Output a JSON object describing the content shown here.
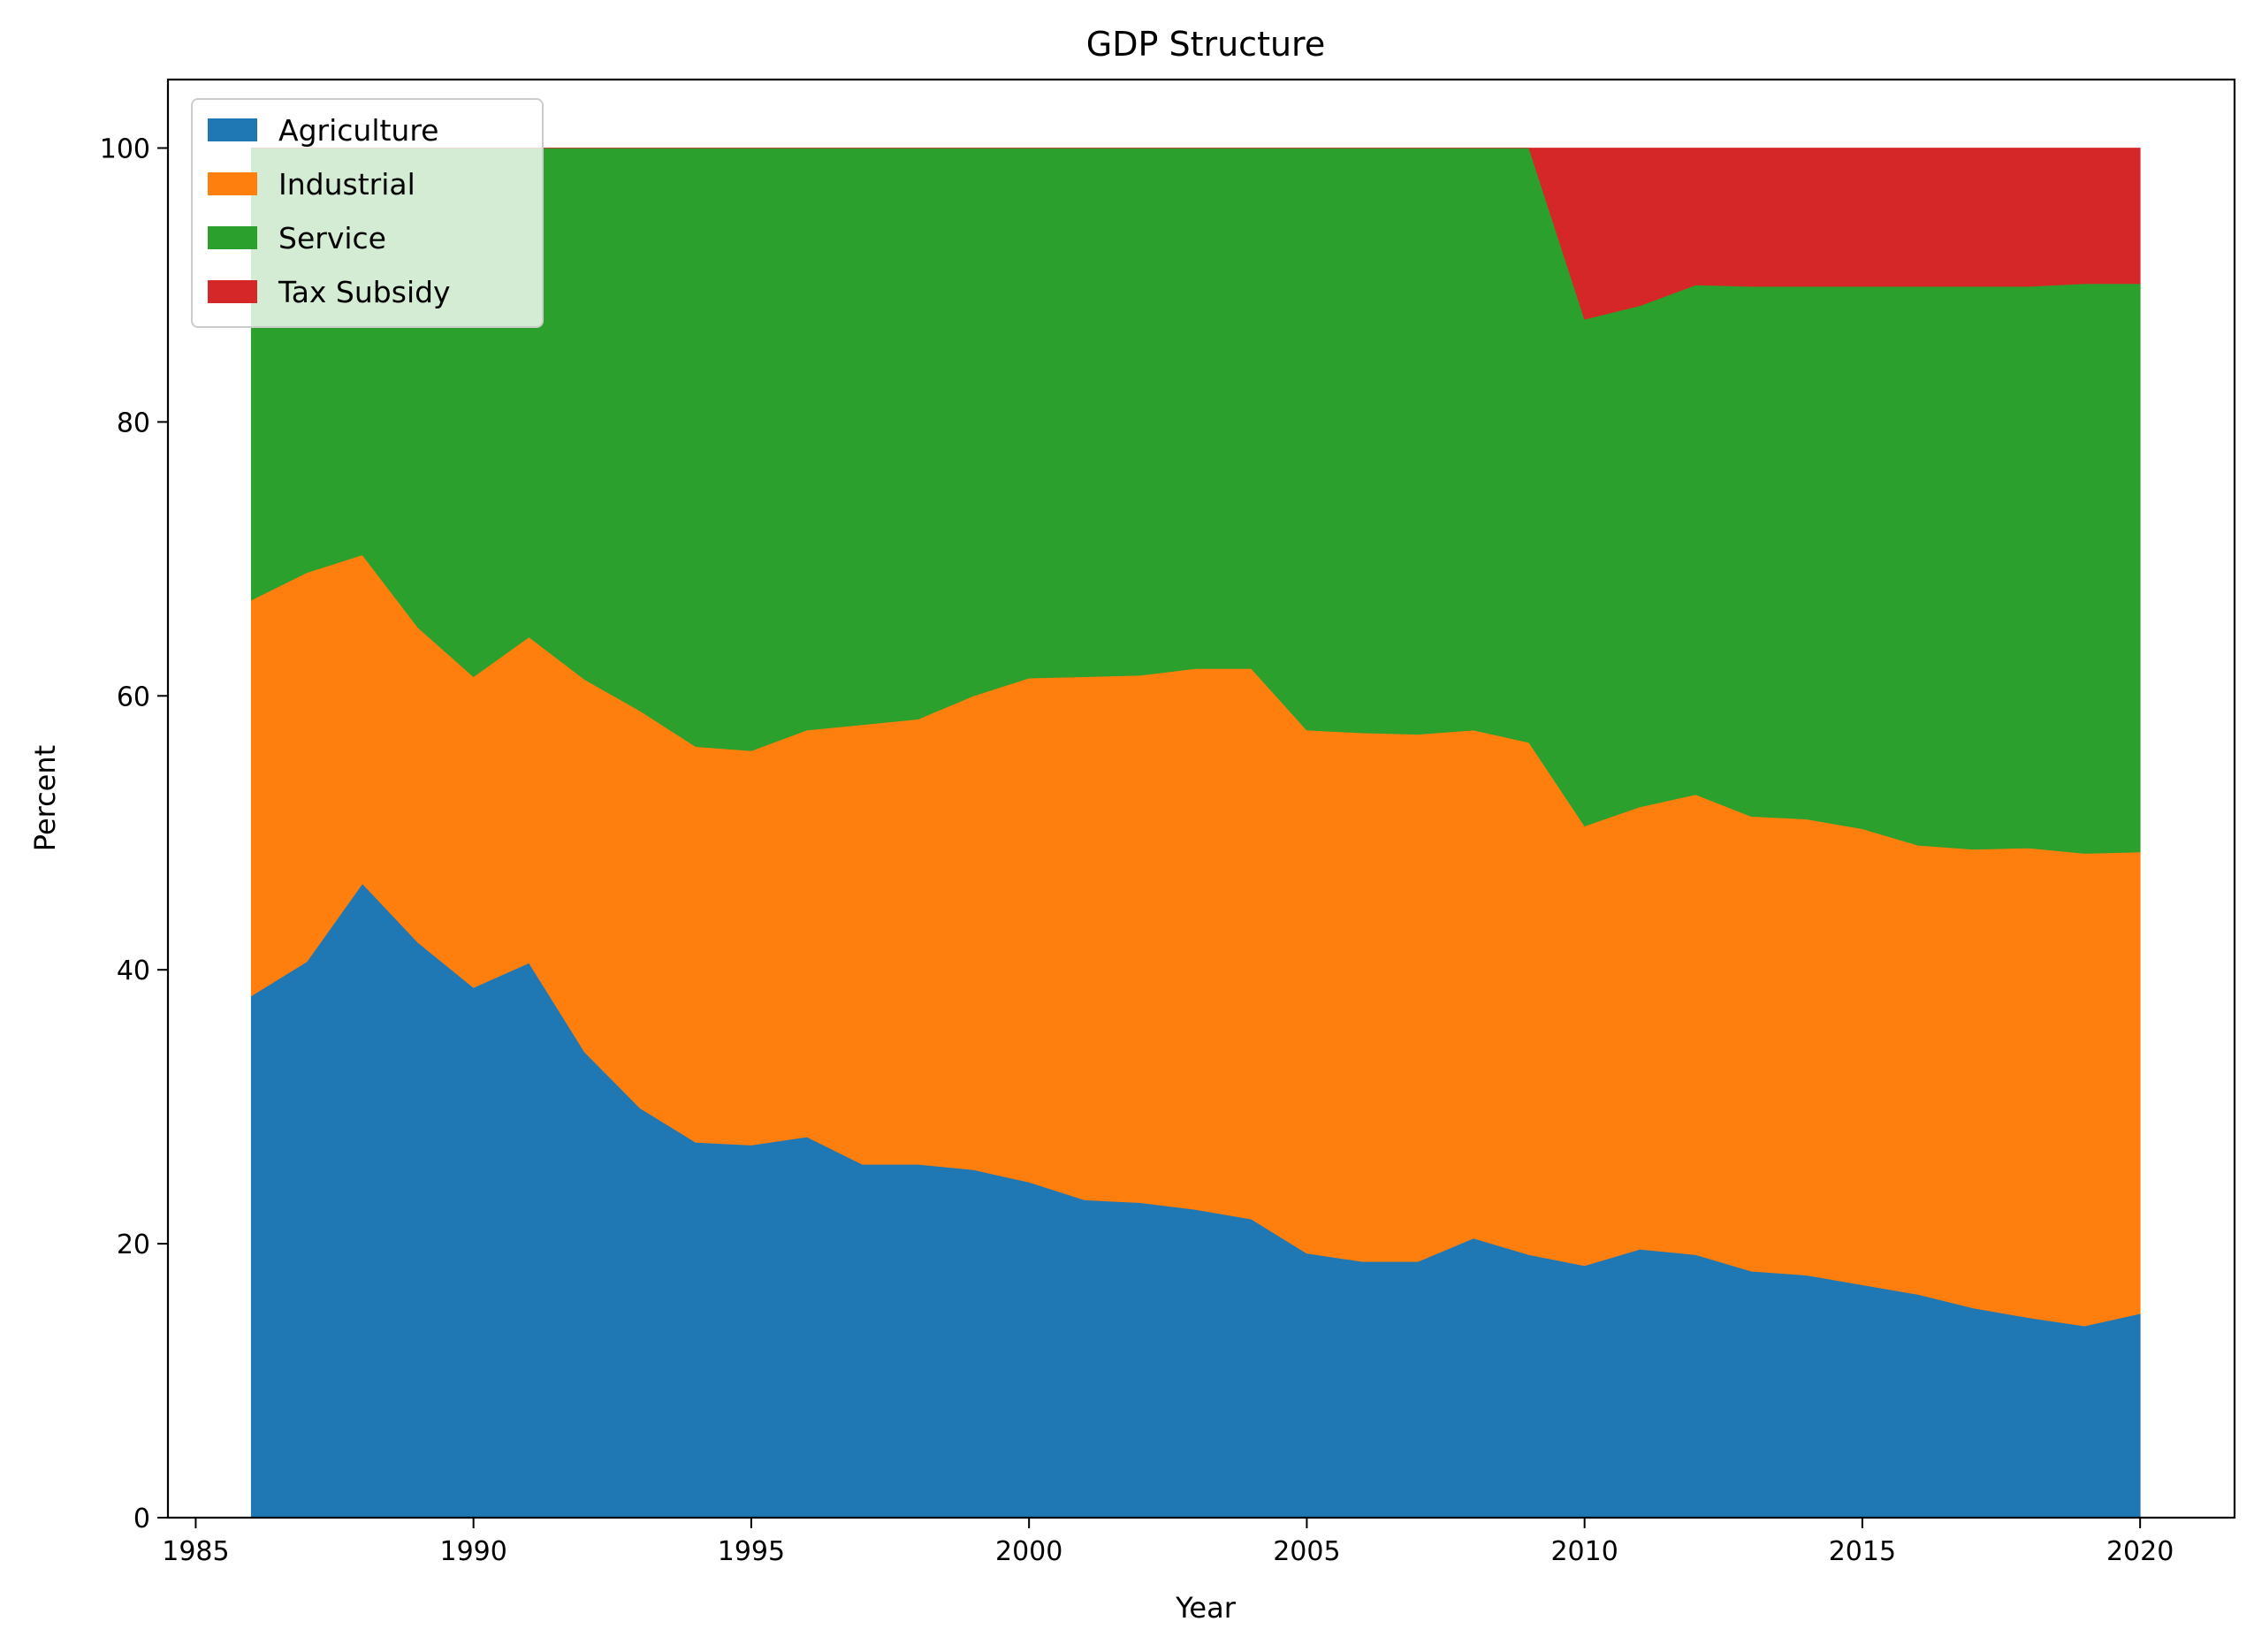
{
  "chart_data": {
    "type": "area",
    "stacked": true,
    "title": "GDP Structure",
    "xlabel": "Year",
    "ylabel": "Percent",
    "xlim": [
      1984.5,
      2021.7
    ],
    "ylim": [
      0,
      105
    ],
    "xticks": [
      1985,
      1990,
      1995,
      2000,
      2005,
      2010,
      2015,
      2020
    ],
    "yticks": [
      0,
      20,
      40,
      60,
      80,
      100
    ],
    "grid": false,
    "legend_position": "top-left",
    "x": [
      1986,
      1987,
      1988,
      1989,
      1990,
      1991,
      1992,
      1993,
      1994,
      1995,
      1996,
      1997,
      1998,
      1999,
      2000,
      2001,
      2002,
      2003,
      2004,
      2005,
      2006,
      2007,
      2008,
      2009,
      2010,
      2011,
      2012,
      2013,
      2014,
      2015,
      2016,
      2017,
      2018,
      2019,
      2020
    ],
    "series": [
      {
        "name": "Agriculture",
        "color": "#1f77b4",
        "values": [
          38.1,
          40.6,
          46.3,
          42.0,
          38.7,
          40.5,
          34.0,
          29.9,
          27.4,
          27.2,
          27.8,
          25.8,
          25.8,
          25.4,
          24.5,
          23.2,
          23.0,
          22.5,
          21.8,
          19.3,
          18.7,
          18.7,
          20.4,
          19.2,
          18.4,
          19.6,
          19.2,
          18.0,
          17.7,
          17.0,
          16.3,
          15.3,
          14.6,
          14.0,
          14.9
        ]
      },
      {
        "name": "Industrial",
        "color": "#ff7f0e",
        "values": [
          28.9,
          28.4,
          24.0,
          23.0,
          22.7,
          23.8,
          27.2,
          29.0,
          28.9,
          28.8,
          29.7,
          32.1,
          32.5,
          34.6,
          36.8,
          38.2,
          38.5,
          39.5,
          40.2,
          38.2,
          38.6,
          38.5,
          37.1,
          37.4,
          32.1,
          32.3,
          33.6,
          33.2,
          33.3,
          33.3,
          32.8,
          33.5,
          34.3,
          34.5,
          33.7
        ]
      },
      {
        "name": "Service",
        "color": "#2ca02c",
        "values": [
          33.0,
          31.0,
          29.7,
          35.0,
          38.6,
          35.7,
          38.8,
          41.1,
          43.7,
          44.0,
          42.5,
          42.1,
          41.7,
          40.0,
          38.7,
          38.6,
          38.5,
          38.0,
          38.0,
          42.5,
          42.7,
          42.8,
          42.5,
          43.4,
          37.0,
          36.6,
          37.2,
          38.7,
          38.9,
          39.6,
          40.8,
          41.1,
          41.0,
          41.6,
          41.5
        ]
      },
      {
        "name": "Tax Subsidy",
        "color": "#d62728",
        "values": [
          0,
          0,
          0,
          0,
          0,
          0,
          0,
          0,
          0,
          0,
          0,
          0,
          0,
          0,
          0,
          0,
          0,
          0,
          0,
          0,
          0,
          0,
          0,
          0,
          12.5,
          11.5,
          10.0,
          10.1,
          10.1,
          10.1,
          10.1,
          10.1,
          10.1,
          9.9,
          9.9
        ]
      }
    ]
  }
}
